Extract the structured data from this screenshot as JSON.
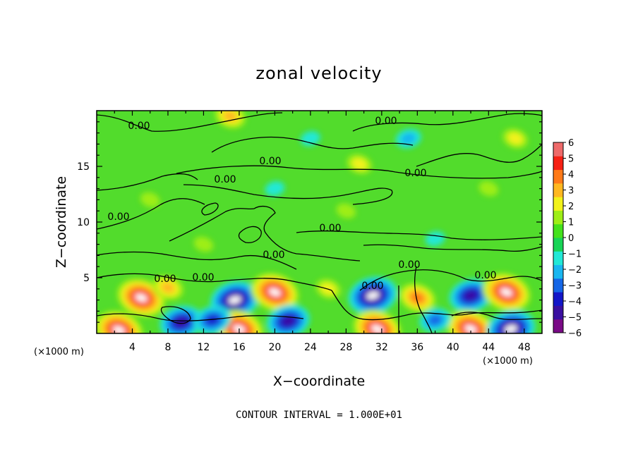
{
  "chart_data": {
    "type": "heatmap",
    "title": "zonal velocity",
    "xlabel": "X−coordinate",
    "ylabel": "Z−coordinate",
    "x_unit": "(×1000 m)",
    "y_unit": "(×1000 m)",
    "xlim": [
      0,
      50
    ],
    "ylim": [
      0,
      20
    ],
    "x_ticks": [
      4,
      8,
      12,
      16,
      20,
      24,
      28,
      32,
      36,
      40,
      44,
      48
    ],
    "y_ticks": [
      5,
      10,
      15
    ],
    "colorbar": {
      "ticks": [
        "6",
        "5",
        "4",
        "3",
        "2",
        "1",
        "0",
        "−1",
        "−2",
        "−3",
        "−4",
        "−5",
        "−6"
      ],
      "range": [
        -6,
        6
      ],
      "colors": [
        "#7a0a86",
        "#3a0fa0",
        "#1316c8",
        "#1466e6",
        "#19b6f0",
        "#22e8d6",
        "#18d456",
        "#44e21c",
        "#9eee16",
        "#f2f21a",
        "#ffb820",
        "#ff7a18",
        "#f62014",
        "#ee6a6a"
      ]
    },
    "contour_label": "0.00",
    "contour_interval_text": "CONTOUR INTERVAL = 1.000E+01",
    "features": [
      {
        "x": 5.0,
        "z": 3.2,
        "value": 6
      },
      {
        "x": 2.5,
        "z": 0.3,
        "value": 6
      },
      {
        "x": 9.5,
        "z": 1.0,
        "value": -5
      },
      {
        "x": 15.5,
        "z": 3.0,
        "value": -6
      },
      {
        "x": 16.0,
        "z": 0.4,
        "value": 6
      },
      {
        "x": 20.0,
        "z": 3.7,
        "value": 6
      },
      {
        "x": 21.5,
        "z": 1.1,
        "value": -5
      },
      {
        "x": 13.0,
        "z": 1.2,
        "value": -4
      },
      {
        "x": 31.0,
        "z": 3.4,
        "value": -6
      },
      {
        "x": 31.5,
        "z": 0.4,
        "value": 6
      },
      {
        "x": 36.0,
        "z": 3.2,
        "value": 4
      },
      {
        "x": 42.0,
        "z": 3.4,
        "value": -5
      },
      {
        "x": 42.0,
        "z": 0.4,
        "value": 6
      },
      {
        "x": 46.0,
        "z": 3.7,
        "value": 6
      },
      {
        "x": 46.5,
        "z": 0.4,
        "value": -6
      },
      {
        "x": 38.0,
        "z": 1.2,
        "value": -3
      },
      {
        "x": 8.0,
        "z": 4.1,
        "value": 3
      },
      {
        "x": 26.0,
        "z": 4.0,
        "value": 2
      },
      {
        "x": 15.0,
        "z": 19.5,
        "value": 3
      },
      {
        "x": 47.0,
        "z": 17.5,
        "value": 2
      },
      {
        "x": 29.5,
        "z": 15.2,
        "value": 2
      },
      {
        "x": 44.0,
        "z": 13.0,
        "value": 1
      },
      {
        "x": 35.0,
        "z": 17.5,
        "value": -2
      },
      {
        "x": 20.0,
        "z": 13.0,
        "value": -1
      },
      {
        "x": 28.0,
        "z": 11.0,
        "value": 1
      },
      {
        "x": 12.0,
        "z": 8.0,
        "value": 1
      },
      {
        "x": 38.0,
        "z": 8.5,
        "value": -1
      },
      {
        "x": 6.0,
        "z": 12.0,
        "value": 1
      },
      {
        "x": 24.0,
        "z": 17.5,
        "value": -1
      }
    ]
  },
  "footer": {
    "contour_interval": "CONTOUR INTERVAL = 1.000E+01"
  }
}
